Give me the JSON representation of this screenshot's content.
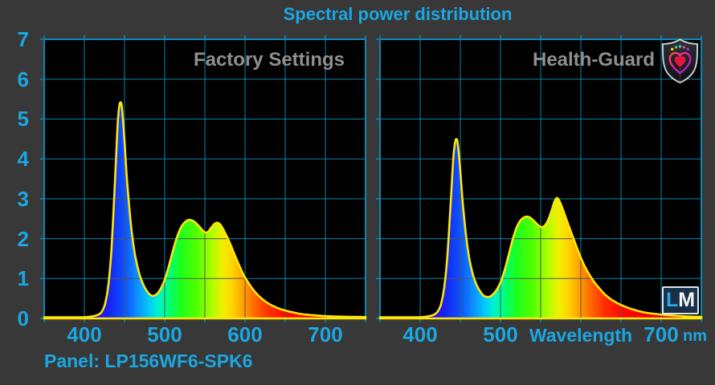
{
  "title": "Spectral power distribution",
  "footer": {
    "panel_label": "Panel: LP156WF6-SPK6"
  },
  "branding": {
    "watermark_l": "L",
    "watermark_m": "M",
    "shield_icon": "health-guard-shield-icon",
    "shield_colors": {
      "border": "#c9ced6",
      "body_dark": "#101114",
      "body_light": "#2c2f36",
      "heart_gradient": [
        "#ff5050",
        "#ff18a0",
        "#7030e0"
      ],
      "inner_heart": "#e3173c",
      "dots": [
        "#ffd400",
        "#4ad24a",
        "#2ec6e0",
        "#e8447a",
        "#7a4ae0"
      ]
    }
  },
  "colors": {
    "background": "#383838",
    "plot_background": "#000000",
    "grid": "#0d86b2",
    "grid_on_fill": "#555555",
    "curve_outline": "#ffe60a",
    "accent_text": "#1ba7e2",
    "muted_text": "#8f8f8f",
    "watermark_bg": "#18304a",
    "spectrum_stops": [
      [
        350,
        "#2d00a0"
      ],
      [
        400,
        "#3e00d8"
      ],
      [
        430,
        "#1722f0"
      ],
      [
        450,
        "#0b53ff"
      ],
      [
        465,
        "#0e8bff"
      ],
      [
        480,
        "#00c8f8"
      ],
      [
        492,
        "#00f2d0"
      ],
      [
        505,
        "#00ff7a"
      ],
      [
        520,
        "#1dff1d"
      ],
      [
        540,
        "#52ff00"
      ],
      [
        558,
        "#a8ff00"
      ],
      [
        572,
        "#f0f000"
      ],
      [
        585,
        "#ffd200"
      ],
      [
        598,
        "#ffa000"
      ],
      [
        612,
        "#ff6a00"
      ],
      [
        628,
        "#ff3300"
      ],
      [
        648,
        "#ff0d00"
      ],
      [
        680,
        "#f00000"
      ],
      [
        750,
        "#c80000"
      ]
    ]
  },
  "y_axis": {
    "ticks": [
      "7",
      "6",
      "5",
      "4",
      "3",
      "2",
      "1",
      "0"
    ],
    "min": 0,
    "max": 7
  },
  "chart_data": [
    {
      "type": "area",
      "title": "Factory Settings",
      "xlabel": "Wavelength (nm)",
      "ylabel": "",
      "xlim": [
        350,
        750
      ],
      "ylim": [
        0,
        7
      ],
      "grid": true,
      "x_ticks": [
        {
          "label": "400",
          "nm": 400
        },
        {
          "label": "500",
          "nm": 500
        },
        {
          "label": "600",
          "nm": 600
        },
        {
          "label": "700",
          "nm": 700
        }
      ],
      "series": [
        {
          "name": "Factory Settings spectral power",
          "points": [
            [
              350,
              0.03
            ],
            [
              395,
              0.03
            ],
            [
              405,
              0.04
            ],
            [
              412,
              0.06
            ],
            [
              418,
              0.1
            ],
            [
              422,
              0.18
            ],
            [
              426,
              0.38
            ],
            [
              430,
              0.85
            ],
            [
              434,
              1.8
            ],
            [
              438,
              3.4
            ],
            [
              441,
              4.7
            ],
            [
              443,
              5.25
            ],
            [
              445,
              5.42
            ],
            [
              447,
              5.25
            ],
            [
              450,
              4.45
            ],
            [
              453,
              3.5
            ],
            [
              457,
              2.55
            ],
            [
              461,
              1.85
            ],
            [
              465,
              1.4
            ],
            [
              470,
              1.02
            ],
            [
              475,
              0.78
            ],
            [
              480,
              0.63
            ],
            [
              484,
              0.57
            ],
            [
              488,
              0.58
            ],
            [
              492,
              0.65
            ],
            [
              496,
              0.78
            ],
            [
              500,
              0.97
            ],
            [
              505,
              1.3
            ],
            [
              510,
              1.68
            ],
            [
              515,
              2.02
            ],
            [
              520,
              2.27
            ],
            [
              525,
              2.41
            ],
            [
              530,
              2.47
            ],
            [
              535,
              2.45
            ],
            [
              540,
              2.37
            ],
            [
              545,
              2.26
            ],
            [
              549,
              2.17
            ],
            [
              553,
              2.16
            ],
            [
              557,
              2.25
            ],
            [
              561,
              2.35
            ],
            [
              565,
              2.4
            ],
            [
              569,
              2.36
            ],
            [
              573,
              2.23
            ],
            [
              578,
              2.03
            ],
            [
              583,
              1.8
            ],
            [
              588,
              1.55
            ],
            [
              593,
              1.32
            ],
            [
              598,
              1.1
            ],
            [
              603,
              0.93
            ],
            [
              608,
              0.78
            ],
            [
              614,
              0.63
            ],
            [
              620,
              0.51
            ],
            [
              627,
              0.4
            ],
            [
              634,
              0.32
            ],
            [
              642,
              0.25
            ],
            [
              650,
              0.2
            ],
            [
              660,
              0.15
            ],
            [
              670,
              0.11
            ],
            [
              682,
              0.085
            ],
            [
              695,
              0.065
            ],
            [
              710,
              0.05
            ],
            [
              730,
              0.04
            ],
            [
              750,
              0.035
            ]
          ]
        }
      ]
    },
    {
      "type": "area",
      "title": "Health-Guard",
      "xlabel": "Wavelength (nm)",
      "ylabel": "",
      "xlim": [
        350,
        750
      ],
      "ylim": [
        0,
        7
      ],
      "grid": true,
      "x_ticks": [
        {
          "label": "400",
          "nm": 400
        },
        {
          "label": "500",
          "nm": 500
        },
        {
          "label": "Wavelength",
          "nm": 600,
          "is_text": true
        },
        {
          "label": "700",
          "nm": 700,
          "unit": "nm"
        }
      ],
      "series": [
        {
          "name": "Health-Guard spectral power",
          "points": [
            [
              350,
              0.03
            ],
            [
              395,
              0.03
            ],
            [
              405,
              0.04
            ],
            [
              412,
              0.06
            ],
            [
              418,
              0.1
            ],
            [
              422,
              0.18
            ],
            [
              426,
              0.36
            ],
            [
              430,
              0.78
            ],
            [
              434,
              1.6
            ],
            [
              438,
              2.9
            ],
            [
              441,
              3.95
            ],
            [
              443,
              4.35
            ],
            [
              445,
              4.5
            ],
            [
              447,
              4.35
            ],
            [
              450,
              3.7
            ],
            [
              453,
              2.9
            ],
            [
              457,
              2.1
            ],
            [
              461,
              1.52
            ],
            [
              465,
              1.15
            ],
            [
              470,
              0.85
            ],
            [
              475,
              0.67
            ],
            [
              479,
              0.57
            ],
            [
              483,
              0.54
            ],
            [
              487,
              0.55
            ],
            [
              491,
              0.61
            ],
            [
              495,
              0.71
            ],
            [
              500,
              0.9
            ],
            [
              505,
              1.2
            ],
            [
              510,
              1.58
            ],
            [
              515,
              1.97
            ],
            [
              520,
              2.28
            ],
            [
              525,
              2.46
            ],
            [
              530,
              2.54
            ],
            [
              534,
              2.55
            ],
            [
              538,
              2.51
            ],
            [
              543,
              2.42
            ],
            [
              548,
              2.32
            ],
            [
              552,
              2.29
            ],
            [
              556,
              2.35
            ],
            [
              560,
              2.5
            ],
            [
              564,
              2.73
            ],
            [
              567,
              2.92
            ],
            [
              570,
              3.02
            ],
            [
              573,
              2.96
            ],
            [
              576,
              2.82
            ],
            [
              580,
              2.6
            ],
            [
              585,
              2.32
            ],
            [
              590,
              2.05
            ],
            [
              595,
              1.78
            ],
            [
              600,
              1.52
            ],
            [
              605,
              1.3
            ],
            [
              610,
              1.12
            ],
            [
              616,
              0.93
            ],
            [
              622,
              0.78
            ],
            [
              629,
              0.62
            ],
            [
              636,
              0.5
            ],
            [
              644,
              0.4
            ],
            [
              652,
              0.32
            ],
            [
              661,
              0.25
            ],
            [
              671,
              0.19
            ],
            [
              682,
              0.14
            ],
            [
              694,
              0.11
            ],
            [
              708,
              0.08
            ],
            [
              728,
              0.055
            ],
            [
              750,
              0.04
            ]
          ]
        }
      ]
    }
  ]
}
